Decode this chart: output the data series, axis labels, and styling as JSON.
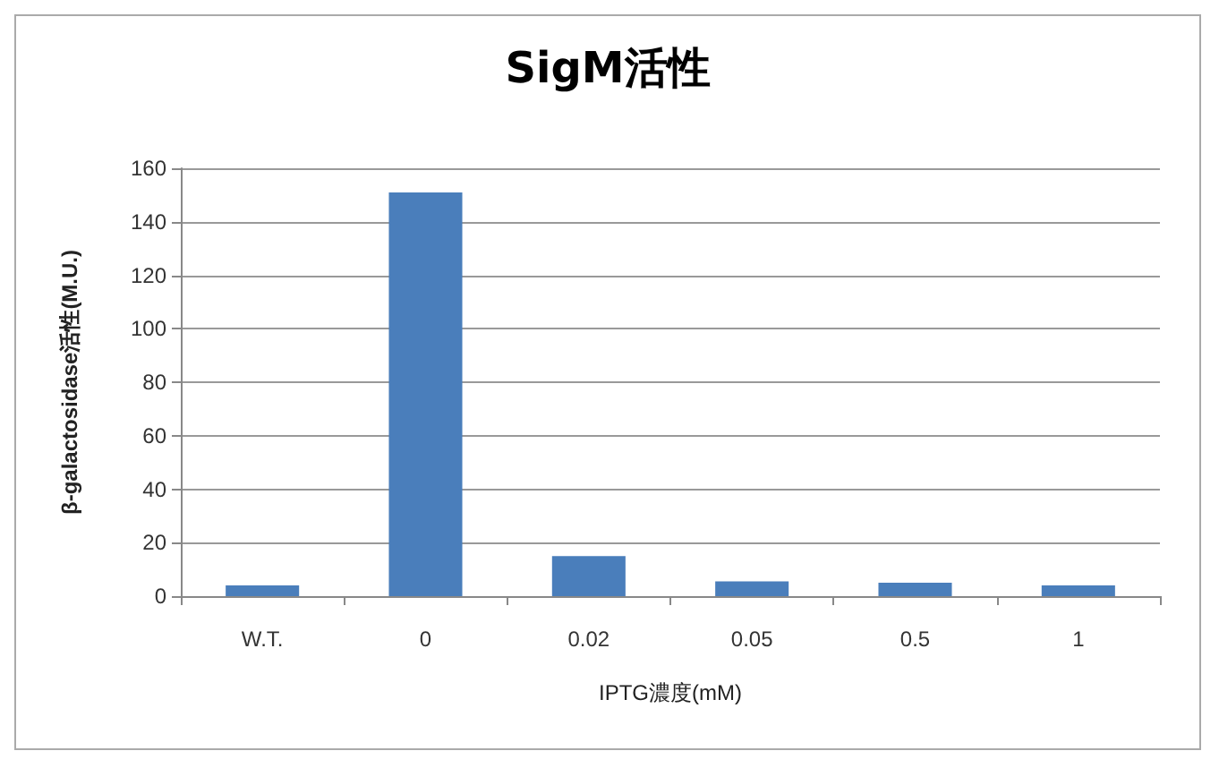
{
  "chart_data": {
    "type": "bar",
    "title": "SigM活性",
    "xlabel": "IPTG濃度(mM)",
    "ylabel": "β-galactosidase活性(M.U.)",
    "categories": [
      "W.T.",
      "0",
      "0.02",
      "0.05",
      "0.5",
      "1"
    ],
    "values": [
      4,
      151,
      15,
      5.5,
      5,
      4
    ],
    "color": "#4a7ebb",
    "ylim": [
      0,
      160
    ],
    "yticks": [
      0,
      20,
      40,
      60,
      80,
      100,
      120,
      140,
      160
    ],
    "grid": "y"
  }
}
